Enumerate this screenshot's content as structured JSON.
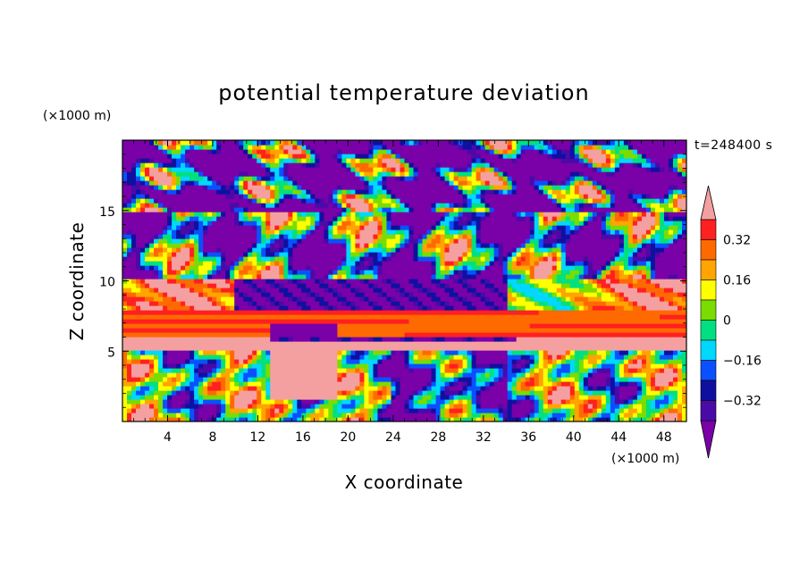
{
  "chart_data": {
    "type": "heatmap",
    "title": "potential temperature deviation",
    "time_label": "t=248400 s",
    "xlabel": "X coordinate",
    "ylabel": "Z coordinate",
    "x_unit": "(×1000 m)",
    "y_unit": "(×1000 m)",
    "xlim": [
      0,
      50
    ],
    "ylim": [
      0,
      20
    ],
    "xticks": [
      "4",
      "8",
      "12",
      "16",
      "20",
      "24",
      "28",
      "32",
      "36",
      "40",
      "44",
      "48"
    ],
    "yticks": [
      "5",
      "10",
      "15"
    ],
    "colorbar": {
      "levels": [
        -0.4,
        -0.32,
        -0.24,
        -0.16,
        -0.08,
        0,
        0.08,
        0.16,
        0.24,
        0.32,
        0.4
      ],
      "tick_labels": [
        "0.32",
        "0.16",
        "0",
        "−0.16",
        "−0.32"
      ],
      "tick_values": [
        0.32,
        0.16,
        0,
        -0.16,
        -0.32
      ],
      "colors": [
        "#7a00a8",
        "#4a0aa8",
        "#1010a0",
        "#0a50ff",
        "#00d8ff",
        "#00e080",
        "#7adc00",
        "#ffff00",
        "#ffa400",
        "#ff6a00",
        "#ff2020",
        "#f5a0a0"
      ],
      "extend": "both"
    },
    "field_description_regions": [
      {
        "x": [
          0,
          50
        ],
        "z": [
          15,
          20
        ],
        "value": "mixed, mostly -0.40 with +0.40 patches"
      },
      {
        "x": [
          0,
          50
        ],
        "z": [
          6,
          8
        ],
        "value": 0.32
      },
      {
        "x": [
          0,
          50
        ],
        "z": [
          0,
          5
        ],
        "value": "mixed, waves"
      }
    ]
  }
}
